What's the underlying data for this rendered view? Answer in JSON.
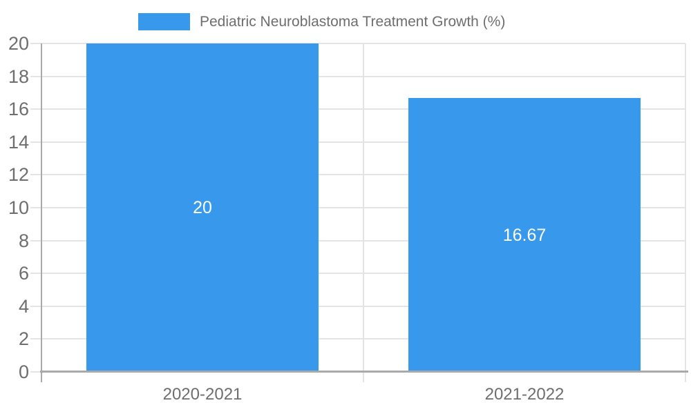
{
  "legend": {
    "label": "Pediatric Neuroblastoma Treatment Growth (%)"
  },
  "colors": {
    "bar": "#3899ec",
    "gridline": "#e4e4e4",
    "axis": "#a9a9a9",
    "tick_text": "#6e6e6e",
    "legend_text": "#6e6e6e",
    "bar_label_text": "#ffffff",
    "background": "#ffffff"
  },
  "chart_data": {
    "type": "bar",
    "title": "Pediatric Neuroblastoma Treatment Growth (%)",
    "categories": [
      "2020-2021",
      "2021-2022"
    ],
    "values": [
      20,
      16.67
    ],
    "bar_labels": [
      "20",
      "16.67"
    ],
    "xlabel": "",
    "ylabel": "",
    "ylim": [
      0,
      20
    ],
    "yticks": [
      0,
      2,
      4,
      6,
      8,
      10,
      12,
      14,
      16,
      18,
      20
    ],
    "grid": true,
    "legend_position": "top-center",
    "bar_label_position": "center"
  }
}
